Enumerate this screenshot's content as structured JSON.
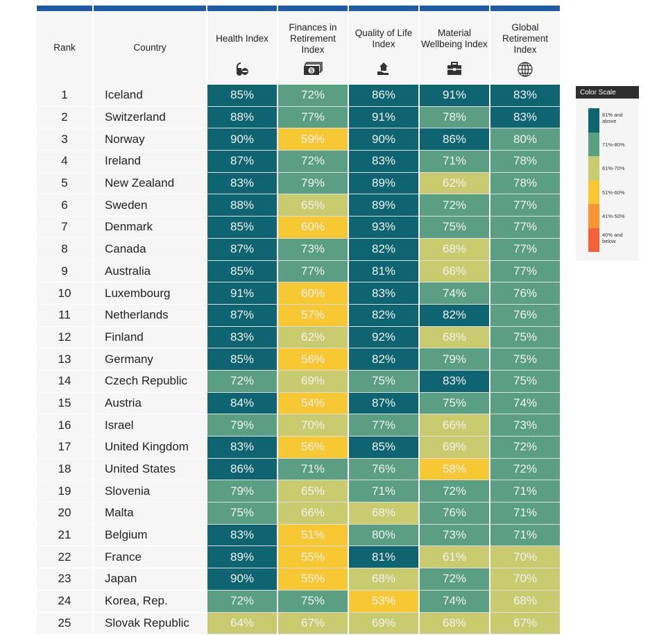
{
  "chart_data": {
    "type": "table",
    "columns": [
      "Rank",
      "Country",
      "Health Index",
      "Finances in Retirement Index",
      "Quality of Life Index",
      "Material Wellbeing Index",
      "Global Retirement Index"
    ],
    "column_icons": [
      "",
      "",
      "pill-icon",
      "money-stack-icon",
      "house-in-hand-icon",
      "briefcase-icon",
      "globe-icon"
    ],
    "rows": [
      [
        1,
        "Iceland",
        "85%",
        "72%",
        "86%",
        "91%",
        "83%"
      ],
      [
        2,
        "Switzerland",
        "88%",
        "77%",
        "91%",
        "78%",
        "83%"
      ],
      [
        3,
        "Norway",
        "90%",
        "59%",
        "90%",
        "86%",
        "80%"
      ],
      [
        4,
        "Ireland",
        "87%",
        "72%",
        "83%",
        "71%",
        "78%"
      ],
      [
        5,
        "New Zealand",
        "83%",
        "79%",
        "89%",
        "62%",
        "78%"
      ],
      [
        6,
        "Sweden",
        "88%",
        "65%",
        "89%",
        "72%",
        "77%"
      ],
      [
        7,
        "Denmark",
        "85%",
        "60%",
        "93%",
        "75%",
        "77%"
      ],
      [
        8,
        "Canada",
        "87%",
        "73%",
        "82%",
        "68%",
        "77%"
      ],
      [
        9,
        "Australia",
        "85%",
        "77%",
        "81%",
        "66%",
        "77%"
      ],
      [
        10,
        "Luxembourg",
        "91%",
        "60%",
        "83%",
        "74%",
        "76%"
      ],
      [
        11,
        "Netherlands",
        "87%",
        "57%",
        "82%",
        "82%",
        "76%"
      ],
      [
        12,
        "Finland",
        "83%",
        "62%",
        "92%",
        "68%",
        "75%"
      ],
      [
        13,
        "Germany",
        "85%",
        "56%",
        "82%",
        "79%",
        "75%"
      ],
      [
        14,
        "Czech Republic",
        "72%",
        "69%",
        "75%",
        "83%",
        "75%"
      ],
      [
        15,
        "Austria",
        "84%",
        "54%",
        "87%",
        "75%",
        "74%"
      ],
      [
        16,
        "Israel",
        "79%",
        "70%",
        "77%",
        "66%",
        "73%"
      ],
      [
        17,
        "United Kingdom",
        "83%",
        "56%",
        "85%",
        "69%",
        "72%"
      ],
      [
        18,
        "United States",
        "86%",
        "71%",
        "76%",
        "58%",
        "72%"
      ],
      [
        19,
        "Slovenia",
        "79%",
        "65%",
        "71%",
        "72%",
        "71%"
      ],
      [
        20,
        "Malta",
        "75%",
        "66%",
        "68%",
        "76%",
        "71%"
      ],
      [
        21,
        "Belgium",
        "83%",
        "51%",
        "80%",
        "73%",
        "71%"
      ],
      [
        22,
        "France",
        "89%",
        "55%",
        "81%",
        "61%",
        "70%"
      ],
      [
        23,
        "Japan",
        "90%",
        "55%",
        "68%",
        "72%",
        "70%"
      ],
      [
        24,
        "Korea, Rep.",
        "72%",
        "75%",
        "53%",
        "74%",
        "68%"
      ],
      [
        25,
        "Slovak Republic",
        "64%",
        "67%",
        "69%",
        "68%",
        "67%"
      ]
    ],
    "legend": {
      "title": "Color Scale",
      "placement": "right",
      "items": [
        {
          "label": "81% and above",
          "min": 81,
          "color": "#0e6470"
        },
        {
          "label": "71%-80%",
          "min": 71,
          "color": "#5a9e84"
        },
        {
          "label": "61%-70%",
          "min": 61,
          "color": "#c9cc6e"
        },
        {
          "label": "51%-60%",
          "min": 51,
          "color": "#f8c734"
        },
        {
          "label": "41%-50%",
          "min": 41,
          "color": "#f79433"
        },
        {
          "label": "40% and below",
          "min": 0,
          "color": "#f5623a"
        }
      ]
    }
  }
}
